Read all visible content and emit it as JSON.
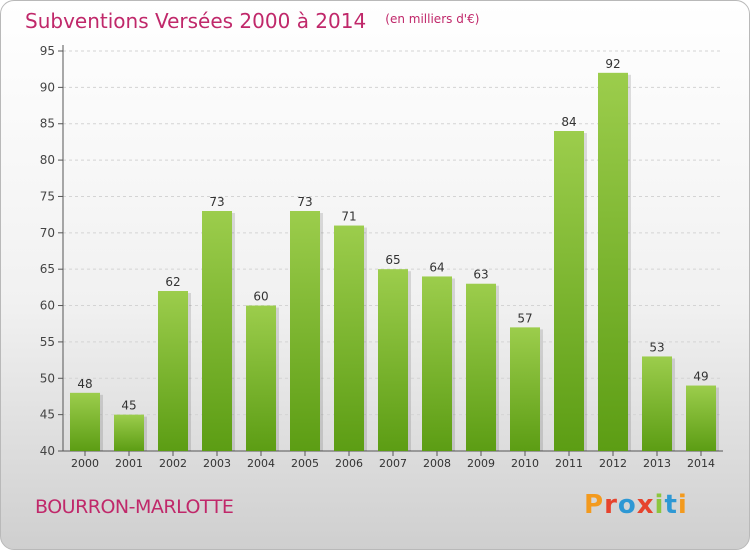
{
  "header": {
    "title": "Subventions Versées 2000 à 2014",
    "unit": "(en milliers d'€)"
  },
  "footer": {
    "commune": "BOURRON-MARLOTTE",
    "logo_text": "Proxiti"
  },
  "colors": {
    "title": "#c0286a",
    "bar_top": "#9ccd4c",
    "bar_bottom": "#5c9d14"
  },
  "chart_data": {
    "type": "bar",
    "categories": [
      "2000",
      "2001",
      "2002",
      "2003",
      "2004",
      "2005",
      "2006",
      "2007",
      "2008",
      "2009",
      "2010",
      "2011",
      "2012",
      "2013",
      "2014"
    ],
    "values": [
      48,
      45,
      62,
      73,
      60,
      73,
      71,
      65,
      64,
      63,
      57,
      84,
      92,
      53,
      49
    ],
    "ylim": [
      40,
      95
    ],
    "yticks": [
      40,
      45,
      50,
      55,
      60,
      65,
      70,
      75,
      80,
      85,
      90,
      95
    ],
    "grid": true
  }
}
